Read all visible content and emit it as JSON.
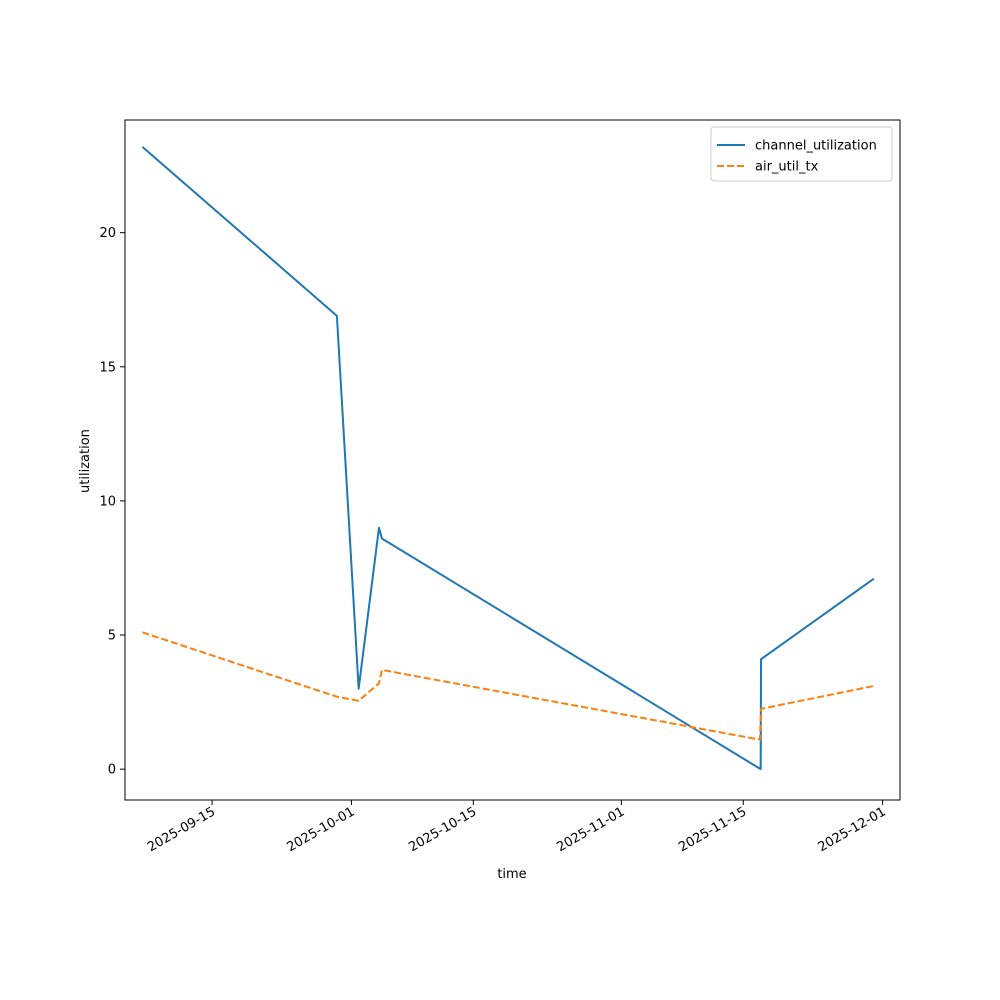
{
  "chart_data": {
    "type": "line",
    "title": "",
    "xlabel": "time",
    "ylabel": "utilization",
    "x_type": "date",
    "xlim": [
      "2025-09-05",
      "2025-12-03"
    ],
    "ylim": [
      -1.15,
      24.2
    ],
    "x_ticks": [
      "2025-09-15",
      "2025-10-01",
      "2025-10-15",
      "2025-11-01",
      "2025-11-15",
      "2025-12-01"
    ],
    "y_ticks": [
      0,
      5,
      10,
      15,
      20
    ],
    "legend_position": "top-right",
    "grid": false,
    "series": [
      {
        "name": "channel_utilization",
        "color": "#1f77b4",
        "style": "solid",
        "points": [
          {
            "x": "2025-09-07",
            "y": 23.2
          },
          {
            "x": "2025-09-29 08:00",
            "y": 16.9
          },
          {
            "x": "2025-10-01 20:00",
            "y": 3.0
          },
          {
            "x": "2025-10-04 04:00",
            "y": 9.0
          },
          {
            "x": "2025-10-04 12:00",
            "y": 8.6
          },
          {
            "x": "2025-11-17 00:00",
            "y": 0.0
          },
          {
            "x": "2025-11-17 01:00",
            "y": 4.1
          },
          {
            "x": "2025-11-30",
            "y": 7.1
          }
        ]
      },
      {
        "name": "air_util_tx",
        "color": "#ff7f0e",
        "style": "dashed",
        "points": [
          {
            "x": "2025-09-07",
            "y": 5.1
          },
          {
            "x": "2025-09-29 08:00",
            "y": 2.7
          },
          {
            "x": "2025-10-01 20:00",
            "y": 2.55
          },
          {
            "x": "2025-10-04 04:00",
            "y": 3.2
          },
          {
            "x": "2025-10-04 12:00",
            "y": 3.7
          },
          {
            "x": "2025-11-16 22:00",
            "y": 1.1
          },
          {
            "x": "2025-11-17 01:00",
            "y": 2.25
          },
          {
            "x": "2025-11-30",
            "y": 3.1
          }
        ]
      }
    ]
  }
}
